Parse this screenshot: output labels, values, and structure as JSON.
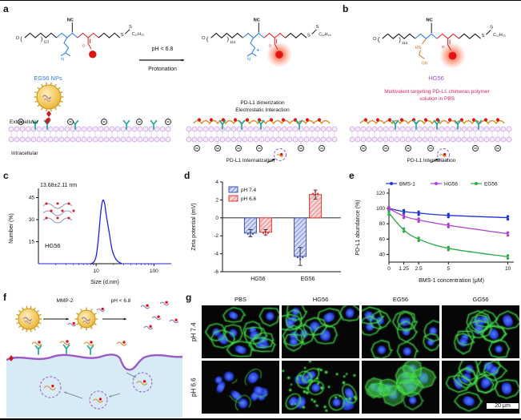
{
  "panel_a": {
    "label": "a",
    "np_label": "EG56 NPs",
    "arrow_top": "pH < 6.8",
    "arrow_bottom": "Protonation",
    "dimerization": "PD-L1 dimerization",
    "electrostatic": "Electrostatic Interaction",
    "extracellular": "Extracellular",
    "intracellular": "Intracellular",
    "internalization": "PD-L1 Internalization"
  },
  "panel_b": {
    "label": "b",
    "np_label": "HG56",
    "solution_line1": "Multivalent targeting PD-L1 chimeras polymer",
    "solution_line2": "solution in PBS",
    "internalization": "PD-L1 Internalization"
  },
  "panel_c": {
    "label": "c"
  },
  "panel_d": {
    "label": "d"
  },
  "panel_e": {
    "label": "e"
  },
  "panel_f": {
    "label": "f",
    "arrow1": "MMP-2",
    "arrow2": "pH < 6.8"
  },
  "panel_g": {
    "label": "g",
    "columns": [
      "PBS",
      "HG56",
      "EG56",
      "GG56"
    ],
    "rows": [
      "pH 7.4",
      "pH 6.6"
    ],
    "scale_bar": "20 μm",
    "tile_styles": [
      [
        "membrane",
        "membrane",
        "membrane",
        "membrane"
      ],
      [
        "sparse",
        "dots",
        "patches",
        "membrane"
      ]
    ]
  },
  "structure": {
    "o": "O",
    "sub": "113",
    "nc": "NC",
    "s": "S",
    "c12": "C₁₂H₂₅",
    "n": "N",
    "hn": "HN",
    "oh": "OH",
    "plus": "+"
  },
  "chart_data": [
    {
      "id": "c",
      "type": "line",
      "title": "13.68±2.11 nm",
      "sample": "HG56",
      "xlabel": "Size (d.nm)",
      "ylabel": "Number (%)",
      "xscale": "log",
      "xlim": [
        1,
        200
      ],
      "ylim": [
        0,
        48
      ],
      "xticks": [
        10,
        100
      ],
      "yticks": [
        15,
        30,
        45
      ],
      "x": [
        8,
        9,
        10,
        11,
        12,
        13,
        14,
        15,
        17,
        19,
        22,
        25,
        28
      ],
      "y": [
        0,
        1,
        5,
        18,
        35,
        43,
        41,
        33,
        20,
        9,
        3,
        1,
        0
      ],
      "color": "#2323e0"
    },
    {
      "id": "d",
      "type": "bar",
      "ylabel": "Zeta potential (mV)",
      "categories": [
        "HG56",
        "EG56"
      ],
      "ylim": [
        -6,
        4
      ],
      "yticks": [
        -6,
        -4,
        -2,
        0,
        2,
        4
      ],
      "legend_position": "top-left",
      "series": [
        {
          "name": "pH 7.4",
          "color": "#3f51b5",
          "fill": "#d3daf7",
          "values": [
            -1.7,
            -4.3
          ],
          "errors": [
            0.4,
            1.0
          ]
        },
        {
          "name": "pH 6.6",
          "color": "#e53935",
          "fill": "#f9d6d6",
          "values": [
            -1.6,
            2.6
          ],
          "errors": [
            0.3,
            0.5
          ]
        }
      ]
    },
    {
      "id": "e",
      "type": "line",
      "xlabel": "BMS-1 concentration (μM)",
      "ylabel": "PD-L1 abundance (%)",
      "xlim": [
        0,
        10.5
      ],
      "ylim": [
        30,
        120
      ],
      "xticks": [
        0,
        1.25,
        2.5,
        5,
        10
      ],
      "yticks": [
        40,
        60,
        80,
        100,
        120
      ],
      "legend_position": "top",
      "series": [
        {
          "name": "BMS-1",
          "color": "#1f35d8",
          "x": [
            0,
            1.25,
            2.5,
            5,
            10
          ],
          "y": [
            100,
            96,
            94,
            91,
            88
          ]
        },
        {
          "name": "HG56",
          "color": "#b13fd6",
          "x": [
            0,
            1.25,
            2.5,
            5,
            10
          ],
          "y": [
            100,
            90,
            85,
            78,
            67
          ]
        },
        {
          "name": "EG56",
          "color": "#2eaa46",
          "x": [
            0,
            1.25,
            2.5,
            5,
            10
          ],
          "y": [
            94,
            72,
            60,
            48,
            37
          ]
        }
      ]
    }
  ]
}
